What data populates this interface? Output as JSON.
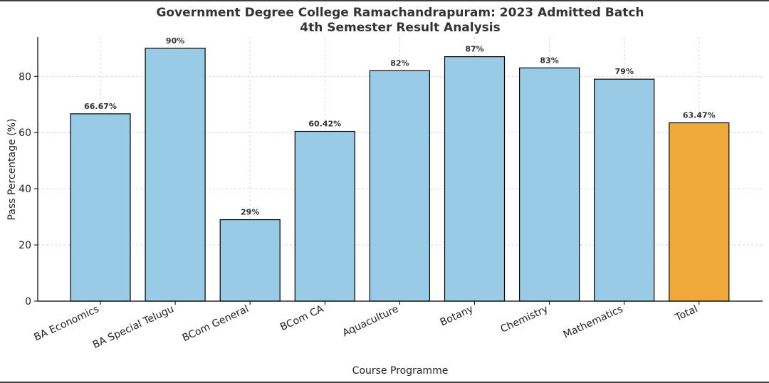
{
  "chart_data": {
    "type": "bar",
    "title": "Government Degree College Ramachandrapuram: 2023 Admitted Batch",
    "subtitle": "4th Semester Result Analysis",
    "xlabel": "Course Programme",
    "ylabel": "Pass Percentage (%)",
    "ylim": [
      0,
      94
    ],
    "yticks": [
      0,
      20,
      40,
      60,
      80
    ],
    "grid": true,
    "categories": [
      "BA Economics",
      "BA Special Telugu",
      "BCom General",
      "BCom CA",
      "Aquaculture",
      "Botany",
      "Chemistry",
      "Mathematics",
      "Total"
    ],
    "values": [
      66.67,
      90,
      29,
      60.42,
      82,
      87,
      83,
      79,
      63.47
    ],
    "data_labels": [
      "66.67%",
      "90%",
      "29%",
      "60.42%",
      "82%",
      "87%",
      "83%",
      "79%",
      "63.47%"
    ],
    "bar_colors": [
      "#99cae6",
      "#99cae6",
      "#99cae6",
      "#99cae6",
      "#99cae6",
      "#99cae6",
      "#99cae6",
      "#99cae6",
      "#f0a93b"
    ]
  }
}
